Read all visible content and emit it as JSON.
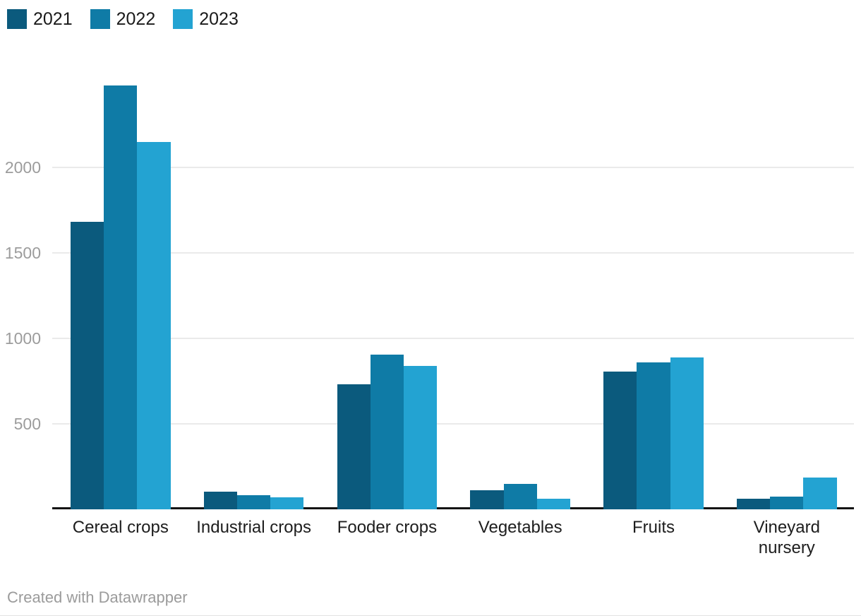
{
  "colors": {
    "background": "#ffffff",
    "series_2021": "#0b5a7d",
    "series_2022": "#0f7ba6",
    "series_2023": "#23a3d2",
    "gridline": "#eaeaea",
    "axis_line": "#141414",
    "tick_text": "#9c9c9c",
    "category_text": "#1d1d1d",
    "legend_text": "#1a1a1a",
    "footer_text": "#9b9b9b"
  },
  "chart_data": {
    "type": "bar",
    "title": "",
    "xlabel": "",
    "ylabel": "",
    "categories": [
      "Cereal crops",
      "Industrial crops",
      "Fooder crops",
      "Vegetables",
      "Fruits",
      "Vineyard nursery"
    ],
    "category_display_lines": [
      [
        "Cereal crops"
      ],
      [
        "Industrial crops"
      ],
      [
        "Fooder crops"
      ],
      [
        "Vegetables"
      ],
      [
        "Fruits"
      ],
      [
        "Vineyard",
        "nursery"
      ]
    ],
    "series": [
      {
        "name": "2021",
        "color": "#0b5a7d",
        "values": [
          1680,
          103,
          730,
          110,
          805,
          62
        ]
      },
      {
        "name": "2022",
        "color": "#0f7ba6",
        "values": [
          2480,
          83,
          905,
          150,
          860,
          74
        ]
      },
      {
        "name": "2023",
        "color": "#23a3d2",
        "values": [
          2150,
          70,
          840,
          62,
          890,
          185
        ]
      }
    ],
    "yticks": [
      500,
      1000,
      1500,
      2000
    ],
    "ylim": [
      0,
      2600
    ],
    "grid": true,
    "legend_position": "top-left"
  },
  "footer": {
    "credit": "Created with Datawrapper"
  }
}
